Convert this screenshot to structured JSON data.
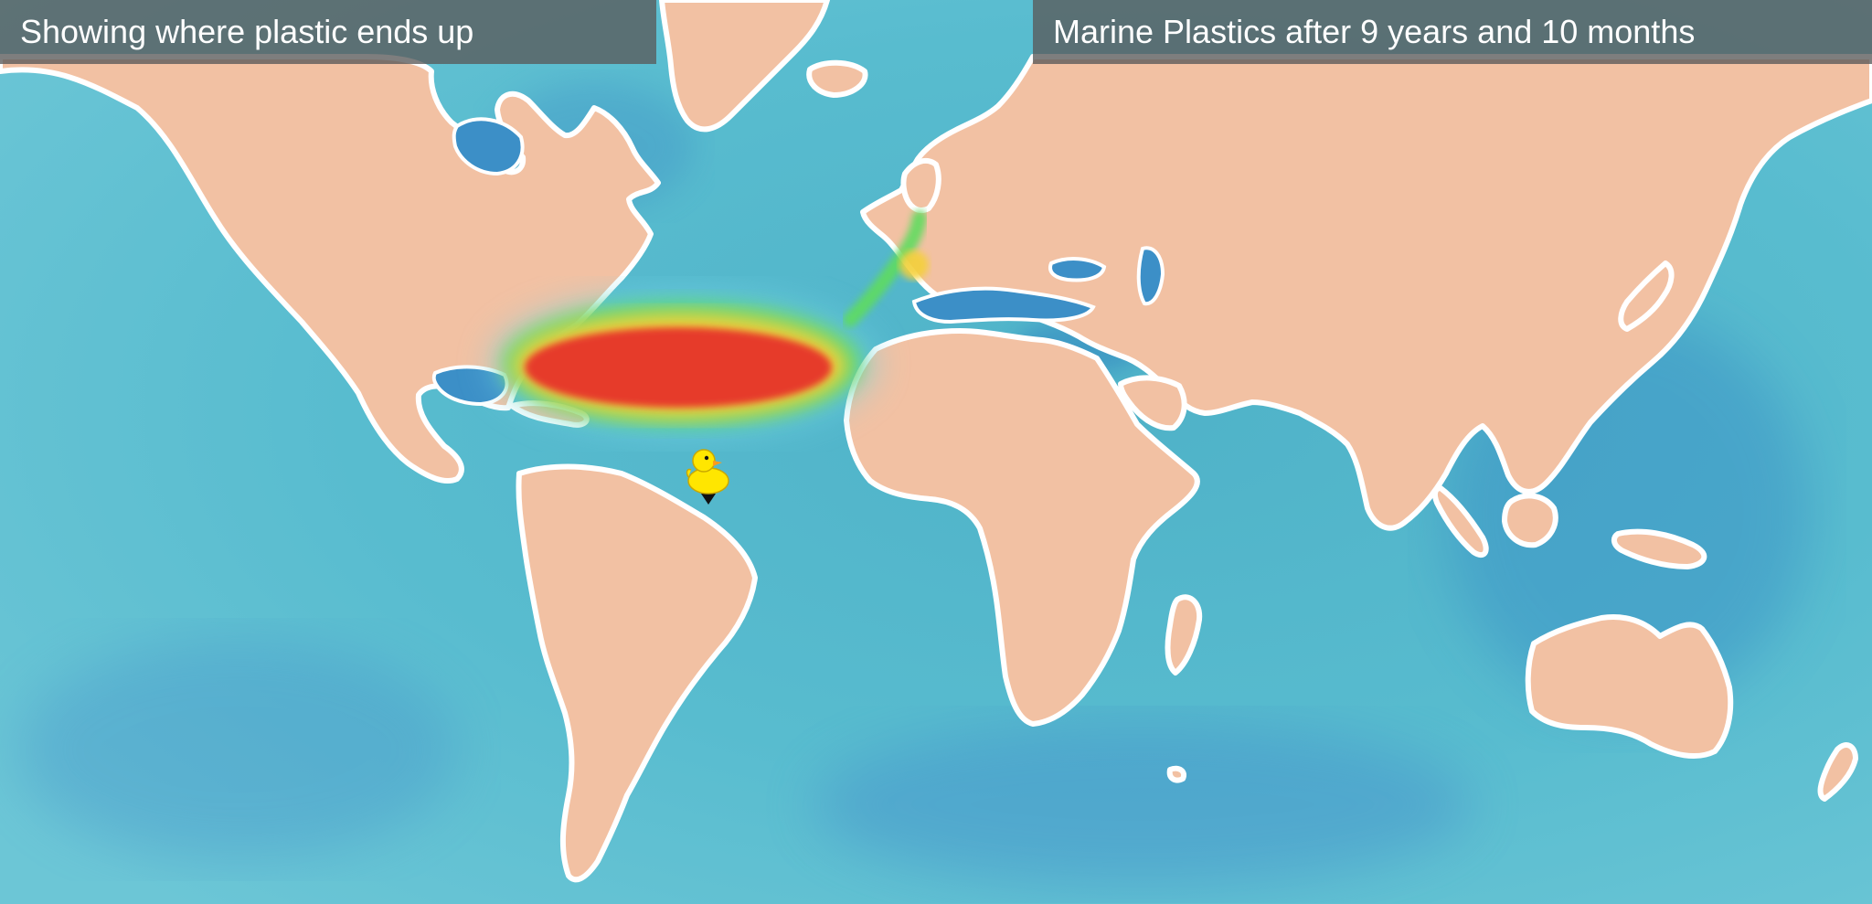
{
  "header": {
    "subtitle": "Showing where plastic ends up",
    "title": "Marine Plastics after 9 years and 10 months"
  },
  "map": {
    "ocean_color": "#56b9cd",
    "land_color": "#f2c1a3",
    "coast_color": "#ffffff",
    "heat_colors": [
      "#e63b2a",
      "#f4d03a",
      "#5fdc5f",
      "#76d6e6"
    ]
  },
  "marker": {
    "icon": "rubber-duck-icon",
    "color": "#ffe600"
  }
}
